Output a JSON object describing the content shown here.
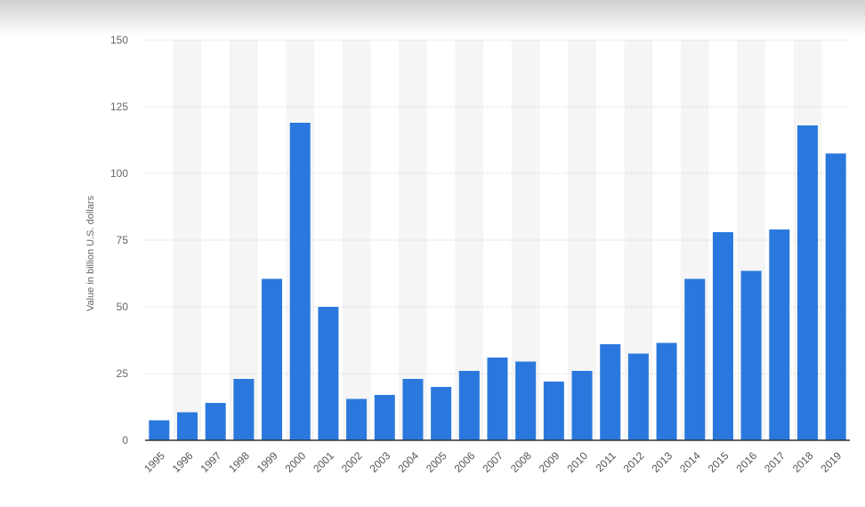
{
  "chart_data": {
    "type": "bar",
    "categories": [
      "1995",
      "1996",
      "1997",
      "1998",
      "1999",
      "2000",
      "2001",
      "2002",
      "2003",
      "2004",
      "2005",
      "2006",
      "2007",
      "2008",
      "2009",
      "2010",
      "2011",
      "2012",
      "2013",
      "2014",
      "2015",
      "2016",
      "2017",
      "2018",
      "2019"
    ],
    "values": [
      7.5,
      10.5,
      14,
      23,
      60.5,
      119,
      50,
      15.5,
      17,
      23,
      20,
      26,
      31,
      29.5,
      22,
      26,
      36,
      32.5,
      36.5,
      60.5,
      78,
      63.5,
      79,
      118,
      107.5
    ],
    "ylabel": "Value in billion U.S. dollars",
    "xlabel": "",
    "ylim": [
      0,
      150
    ],
    "yticks": [
      0,
      25,
      50,
      75,
      100,
      125,
      150
    ],
    "grid": true,
    "bar_color": "#2a78de",
    "grid_color": "#c8c8c8",
    "band_color": "#f5f5f5"
  }
}
